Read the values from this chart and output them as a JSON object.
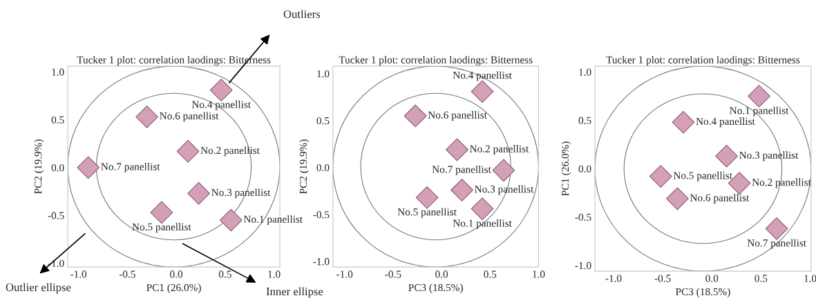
{
  "chart_data": [
    {
      "type": "scatter",
      "title": "Tucker 1 plot: correlation laodings: Bitterness",
      "xlabel": "PC1 (26.0%)",
      "ylabel": "PC2 (19.9%)",
      "xlim": [
        -1.11,
        1.06
      ],
      "ylim": [
        -1.04,
        1.06
      ],
      "xticks": [
        {
          "value": -1,
          "label": "-1.0"
        },
        {
          "value": -0.5,
          "label": "-0.5"
        },
        {
          "value": 0,
          "label": "0.0"
        },
        {
          "value": 0.5,
          "label": "0.5"
        },
        {
          "value": 1,
          "label": "1.0"
        }
      ],
      "yticks": [
        {
          "value": -1,
          "label": "-1.0"
        },
        {
          "value": -0.5,
          "label": "-0.5"
        },
        {
          "value": 0,
          "label": "0.0"
        },
        {
          "value": 0.5,
          "label": "0.5"
        },
        {
          "value": 1,
          "label": "1.0"
        }
      ],
      "marker": "diamond",
      "grid": false,
      "legend": false,
      "annotations": [
        "Outliers",
        "Outlier ellipse",
        "Inner ellipse"
      ],
      "series": [
        {
          "name": "No.1 panellist",
          "color": "#d4a0b8",
          "x": [
            0.56
          ],
          "values": [
            -0.55
          ]
        },
        {
          "name": "No.2 panellist",
          "color": "#d4a0b8",
          "x": [
            0.12
          ],
          "values": [
            0.17
          ]
        },
        {
          "name": "No.3 panellist",
          "color": "#d4a0b8",
          "x": [
            0.23
          ],
          "values": [
            -0.27
          ]
        },
        {
          "name": "No.4 panellist",
          "color": "#d4a0b8",
          "x": [
            0.46
          ],
          "values": [
            0.81
          ]
        },
        {
          "name": "No.5 panellist",
          "color": "#d4a0b8",
          "x": [
            -0.15
          ],
          "values": [
            -0.47
          ]
        },
        {
          "name": "No.6 panellist",
          "color": "#d4a0b8",
          "x": [
            -0.3
          ],
          "values": [
            0.53
          ]
        },
        {
          "name": "No.7 panellist",
          "color": "#d4a0b8",
          "x": [
            -0.9
          ],
          "values": [
            0.0
          ]
        }
      ]
    },
    {
      "type": "scatter",
      "title": "Tucker 1 plot: correlation laodings: Bitterness",
      "xlabel": "PC3 (18.5%)",
      "ylabel": "PC2 (19.9%)",
      "xlim": [
        -1.12,
        1.0
      ],
      "ylim": [
        -1.06,
        1.08
      ],
      "xticks": [
        {
          "value": -1,
          "label": "-1.0"
        },
        {
          "value": -0.5,
          "label": "-0.5"
        },
        {
          "value": 0,
          "label": "0.0"
        },
        {
          "value": 0.5,
          "label": "0.5"
        },
        {
          "value": 1,
          "label": "1.0"
        }
      ],
      "yticks": [
        {
          "value": -1,
          "label": "-1.0"
        },
        {
          "value": -0.5,
          "label": "-0.5"
        },
        {
          "value": 0,
          "label": "0.0"
        },
        {
          "value": 0.5,
          "label": "0.5"
        },
        {
          "value": 1,
          "label": "1.0"
        }
      ],
      "marker": "diamond",
      "grid": false,
      "legend": false,
      "series": [
        {
          "name": "No.1 panellist",
          "color": "#d4a0b8",
          "x": [
            0.42
          ],
          "values": [
            -0.44
          ]
        },
        {
          "name": "No.2 panellist",
          "color": "#d4a0b8",
          "x": [
            0.16
          ],
          "values": [
            0.19
          ]
        },
        {
          "name": "No.3 panellist",
          "color": "#d4a0b8",
          "x": [
            0.21
          ],
          "values": [
            -0.24
          ]
        },
        {
          "name": "No.4 panellist",
          "color": "#d4a0b8",
          "x": [
            0.42
          ],
          "values": [
            0.81
          ]
        },
        {
          "name": "No.5 panellist",
          "color": "#d4a0b8",
          "x": [
            -0.15
          ],
          "values": [
            -0.32
          ]
        },
        {
          "name": "No.6 panellist",
          "color": "#d4a0b8",
          "x": [
            -0.27
          ],
          "values": [
            0.55
          ]
        },
        {
          "name": "No.7 panellist",
          "color": "#d4a0b8",
          "x": [
            0.64
          ],
          "values": [
            -0.03
          ]
        }
      ]
    },
    {
      "type": "scatter",
      "title": "Tucker 1 plot: correlation laodings: Bitterness",
      "xlabel": "PC3 (18.5%)",
      "ylabel": "PC1 (26.0%)",
      "xlim": [
        -1.19,
        1.01
      ],
      "ylim": [
        -1.06,
        1.06
      ],
      "xticks": [
        {
          "value": -1,
          "label": "-1.0"
        },
        {
          "value": -0.5,
          "label": "-0.5"
        },
        {
          "value": 0,
          "label": "0.0"
        },
        {
          "value": 0.5,
          "label": "0.5"
        },
        {
          "value": 1,
          "label": "1.0"
        }
      ],
      "yticks": [
        {
          "value": -1,
          "label": "-1.0"
        },
        {
          "value": -0.5,
          "label": "-0.5"
        },
        {
          "value": 0,
          "label": "0.0"
        },
        {
          "value": 0.5,
          "label": "0.5"
        },
        {
          "value": 1,
          "label": "1.0"
        }
      ],
      "marker": "diamond",
      "grid": false,
      "legend": false,
      "series": [
        {
          "name": "No.1 panellist",
          "color": "#d4a0b8",
          "x": [
            0.48
          ],
          "values": [
            0.75
          ]
        },
        {
          "name": "No.2 panellist",
          "color": "#d4a0b8",
          "x": [
            0.28
          ],
          "values": [
            -0.15
          ]
        },
        {
          "name": "No.3 panellist",
          "color": "#d4a0b8",
          "x": [
            0.15
          ],
          "values": [
            0.13
          ]
        },
        {
          "name": "No.4 panellist",
          "color": "#d4a0b8",
          "x": [
            -0.29
          ],
          "values": [
            0.48
          ]
        },
        {
          "name": "No.5 panellist",
          "color": "#d4a0b8",
          "x": [
            -0.52
          ],
          "values": [
            -0.08
          ]
        },
        {
          "name": "No.6 panellist",
          "color": "#d4a0b8",
          "x": [
            -0.35
          ],
          "values": [
            -0.31
          ]
        },
        {
          "name": "No.7 panellist",
          "color": "#d4a0b8",
          "x": [
            0.66
          ],
          "values": [
            -0.62
          ]
        }
      ]
    }
  ]
}
